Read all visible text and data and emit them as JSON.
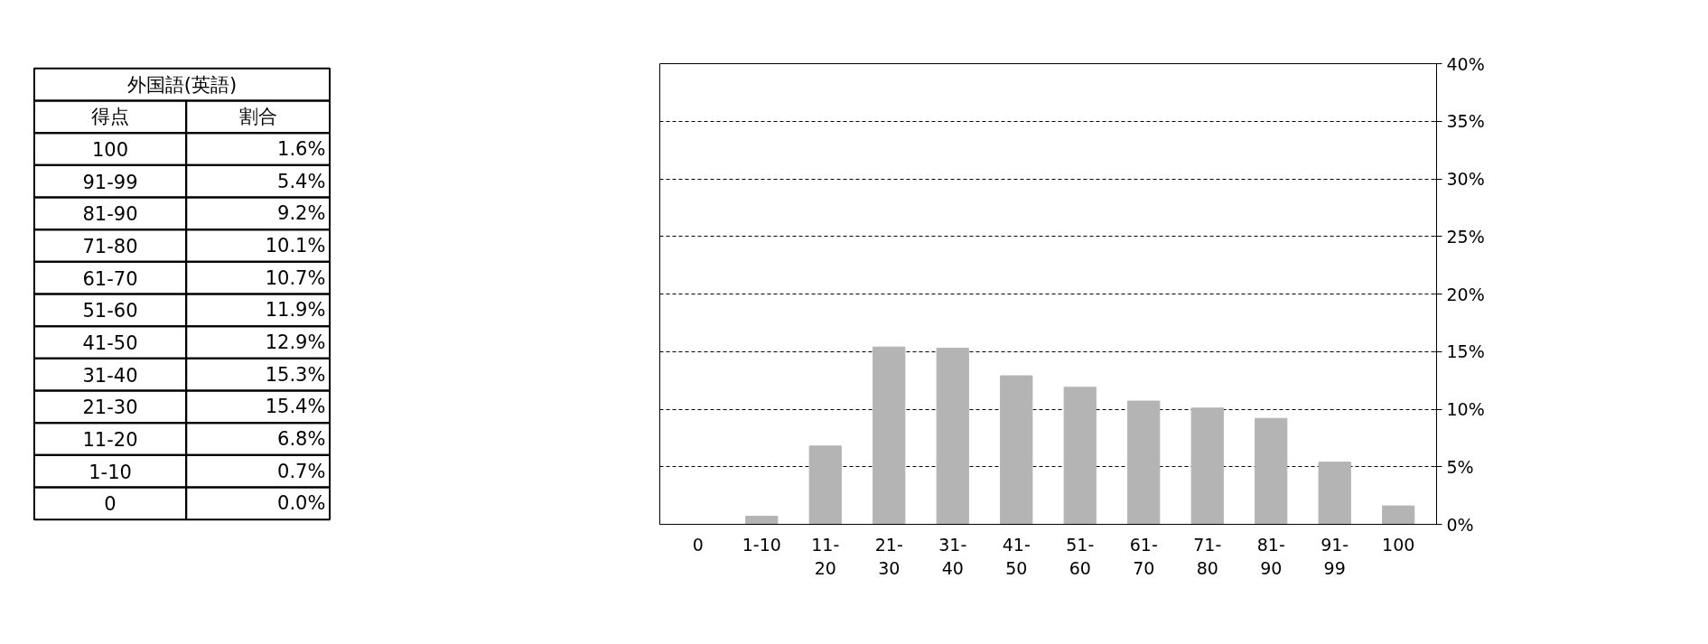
{
  "chart_data": [
    {
      "type": "other",
      "title": "外国語(英語)",
      "annotations": [
        "得点",
        "割合",
        "100",
        "1.6%",
        "91-99",
        "5.4%",
        "81-90",
        "9.2%",
        "71-80",
        "10.1%",
        "61-70",
        "10.7%",
        "51-60",
        "11.9%",
        "41-50",
        "12.9%",
        "31-40",
        "15.3%",
        "21-30",
        "15.4%",
        "11-20",
        "6.8%",
        "1-10",
        "0.7%",
        "0",
        "0.0%"
      ]
    },
    {
      "type": "bar",
      "categories": [
        "0",
        "1-10",
        "11-20",
        "21-30",
        "31-40",
        "41-50",
        "51-60",
        "61-70",
        "71-80",
        "81-90",
        "91-99",
        "100"
      ],
      "values": [
        0.0,
        0.7,
        6.8,
        15.4,
        15.3,
        12.9,
        11.9,
        10.7,
        10.1,
        9.2,
        5.4,
        1.6
      ],
      "color": "#b4b4b4",
      "ylim": [
        0,
        40
      ],
      "yticks": [
        {
          "value": 0,
          "label": "0%"
        },
        {
          "value": 5,
          "label": "5%"
        },
        {
          "value": 10,
          "label": "10%"
        },
        {
          "value": 15,
          "label": "15%"
        },
        {
          "value": 20,
          "label": "20%"
        },
        {
          "value": 25,
          "label": "25%"
        },
        {
          "value": 30,
          "label": "30%"
        },
        {
          "value": 35,
          "label": "35%"
        },
        {
          "value": 40,
          "label": "40%"
        }
      ],
      "grid": "y"
    }
  ]
}
